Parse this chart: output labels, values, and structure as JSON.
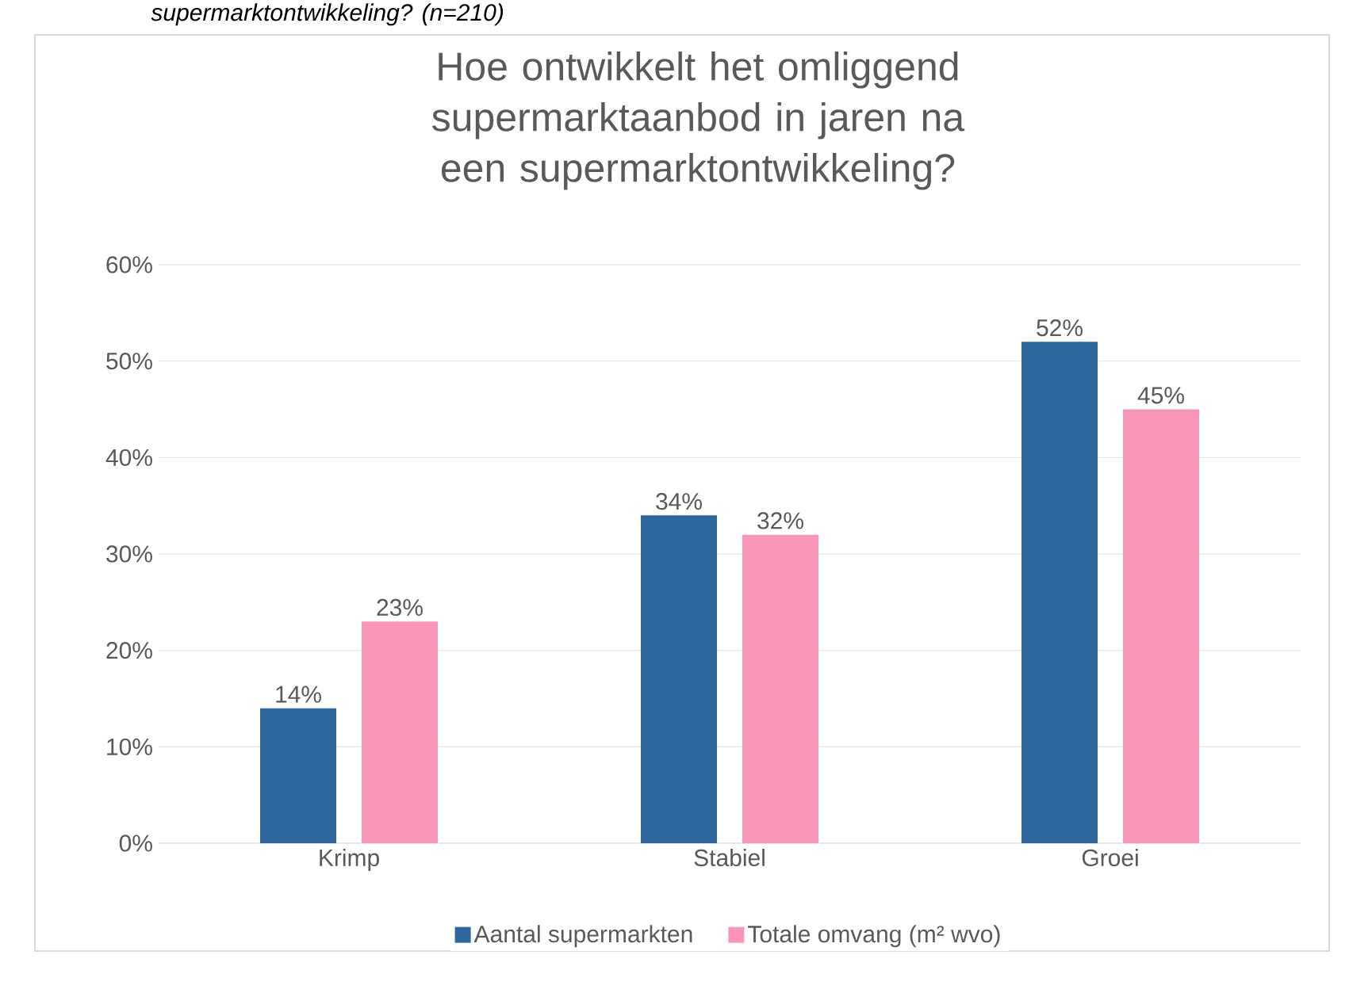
{
  "chart_data": {
    "type": "bar",
    "title": "Hoe ontwikkelt het omliggend supermarktaanbod in jaren na een supermarktontwikkeling?",
    "annotations": [
      "supermarktontwikkeling? (n=210)"
    ],
    "categories": [
      "Krimp",
      "Stabiel",
      "Groei"
    ],
    "series": [
      {
        "name": "Aantal supermarkten",
        "color": "#2e67a0",
        "values": [
          14,
          34,
          52
        ],
        "value_labels": [
          "14%",
          "34%",
          "52%"
        ]
      },
      {
        "name": "Totale omvang (m² wvo)",
        "color": "#f895b8",
        "values": [
          23,
          32,
          45
        ],
        "value_labels": [
          "23%",
          "32%",
          "45%"
        ]
      }
    ],
    "ylim": [
      0,
      60
    ],
    "yticks": [
      {
        "value": 0,
        "label": "0%"
      },
      {
        "value": 10,
        "label": "10%"
      },
      {
        "value": 20,
        "label": "20%"
      },
      {
        "value": 30,
        "label": "30%"
      },
      {
        "value": 40,
        "label": "40%"
      },
      {
        "value": 50,
        "label": "50%"
      },
      {
        "value": 60,
        "label": "60%"
      }
    ],
    "grid": "y",
    "legend": "bottom"
  }
}
